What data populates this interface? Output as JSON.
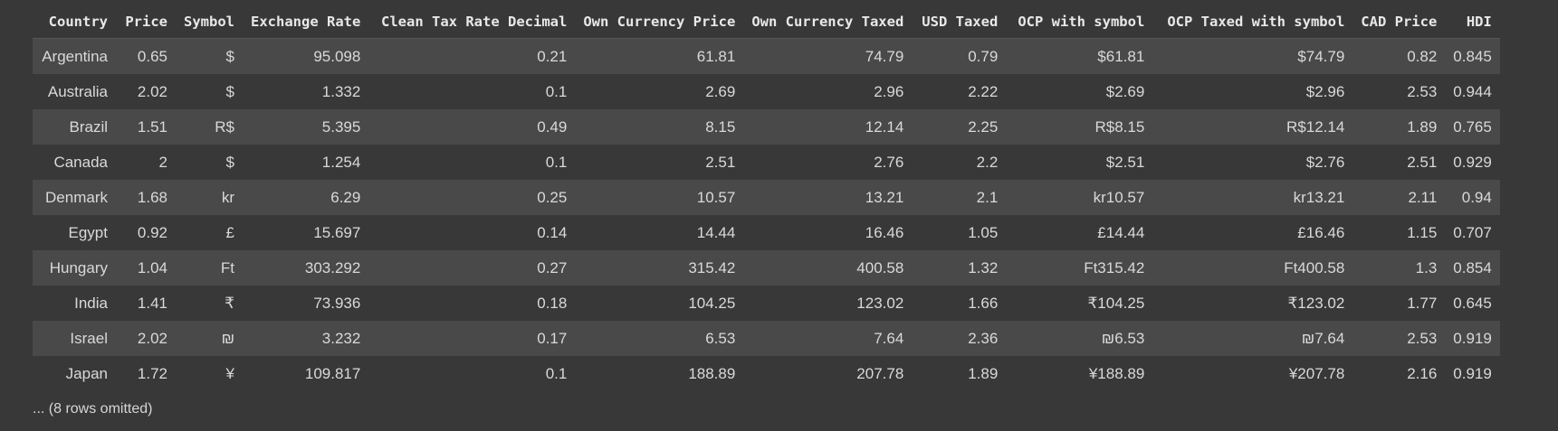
{
  "table": {
    "columns": [
      "Country",
      "Price",
      "Symbol",
      "Exchange Rate",
      "Clean Tax Rate Decimal",
      "Own Currency Price",
      "Own Currency Taxed",
      "USD Taxed",
      "OCP with symbol",
      "OCP Taxed with symbol",
      "CAD Price",
      "HDI"
    ],
    "rows": [
      [
        "Argentina",
        "0.65",
        "$",
        "95.098",
        "0.21",
        "61.81",
        "74.79",
        "0.79",
        "$61.81",
        "$74.79",
        "0.82",
        "0.845"
      ],
      [
        "Australia",
        "2.02",
        "$",
        "1.332",
        "0.1",
        "2.69",
        "2.96",
        "2.22",
        "$2.69",
        "$2.96",
        "2.53",
        "0.944"
      ],
      [
        "Brazil",
        "1.51",
        "R$",
        "5.395",
        "0.49",
        "8.15",
        "12.14",
        "2.25",
        "R$8.15",
        "R$12.14",
        "1.89",
        "0.765"
      ],
      [
        "Canada",
        "2",
        "$",
        "1.254",
        "0.1",
        "2.51",
        "2.76",
        "2.2",
        "$2.51",
        "$2.76",
        "2.51",
        "0.929"
      ],
      [
        "Denmark",
        "1.68",
        "kr",
        "6.29",
        "0.25",
        "10.57",
        "13.21",
        "2.1",
        "kr10.57",
        "kr13.21",
        "2.11",
        "0.94"
      ],
      [
        "Egypt",
        "0.92",
        "£",
        "15.697",
        "0.14",
        "14.44",
        "16.46",
        "1.05",
        "£14.44",
        "£16.46",
        "1.15",
        "0.707"
      ],
      [
        "Hungary",
        "1.04",
        "Ft",
        "303.292",
        "0.27",
        "315.42",
        "400.58",
        "1.32",
        "Ft315.42",
        "Ft400.58",
        "1.3",
        "0.854"
      ],
      [
        "India",
        "1.41",
        "₹",
        "73.936",
        "0.18",
        "104.25",
        "123.02",
        "1.66",
        "₹104.25",
        "₹123.02",
        "1.77",
        "0.645"
      ],
      [
        "Israel",
        "2.02",
        "₪",
        "3.232",
        "0.17",
        "6.53",
        "7.64",
        "2.36",
        "₪6.53",
        "₪7.64",
        "2.53",
        "0.919"
      ],
      [
        "Japan",
        "1.72",
        "¥",
        "109.817",
        "0.1",
        "188.89",
        "207.78",
        "1.89",
        "¥188.89",
        "¥207.78",
        "2.16",
        "0.919"
      ]
    ]
  },
  "footer": {
    "omitted_note": "... (8 rows omitted)"
  }
}
